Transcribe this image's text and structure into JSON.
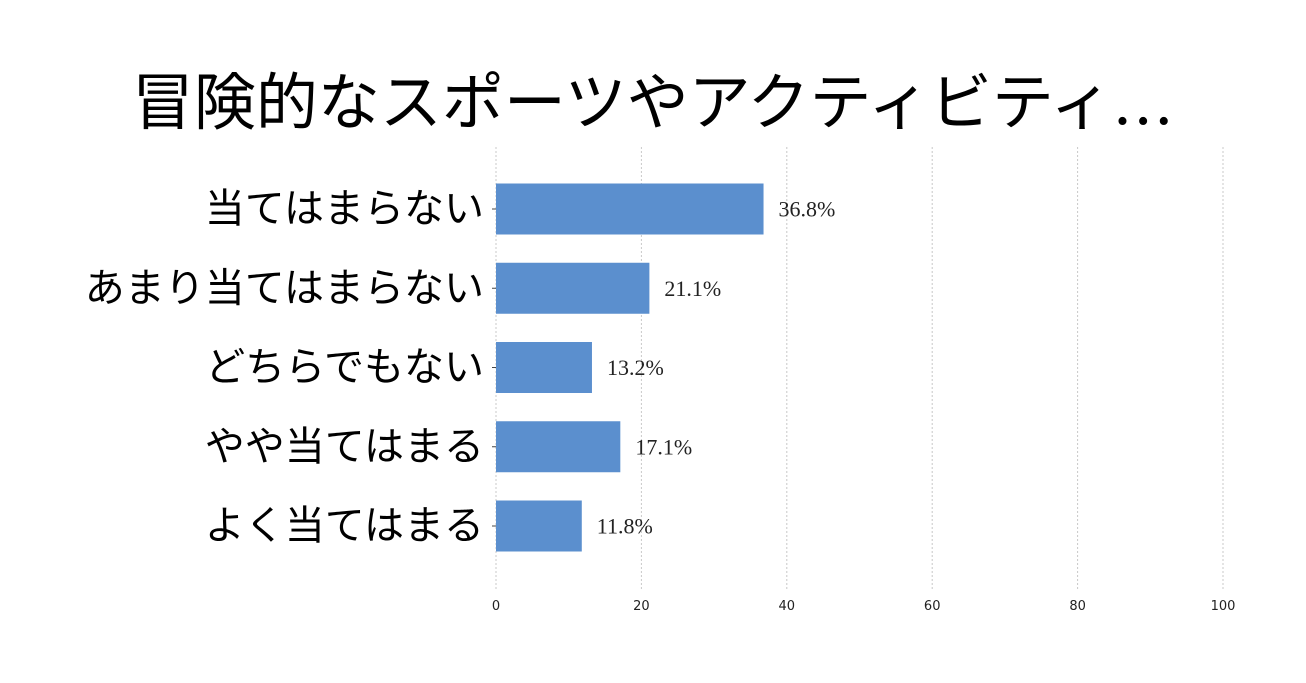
{
  "chart_data": {
    "type": "bar",
    "orientation": "horizontal",
    "title": "冒険的なスポーツやアクティビティ…",
    "categories": [
      "当てはまらない",
      "あまり当てはまらない",
      "どちらでもない",
      "やや当てはまる",
      "よく当てはまる"
    ],
    "values": [
      36.8,
      21.1,
      13.2,
      17.1,
      11.8
    ],
    "data_labels": [
      "36.8%",
      "21.1%",
      "13.2%",
      "17.1%",
      "11.8%"
    ],
    "xlim": [
      0,
      100
    ],
    "xticks": [
      "0",
      "20",
      "40",
      "60",
      "80",
      "100"
    ],
    "xlabel": "",
    "ylabel": "",
    "grid": true,
    "bar_color": "#5b8fce"
  }
}
